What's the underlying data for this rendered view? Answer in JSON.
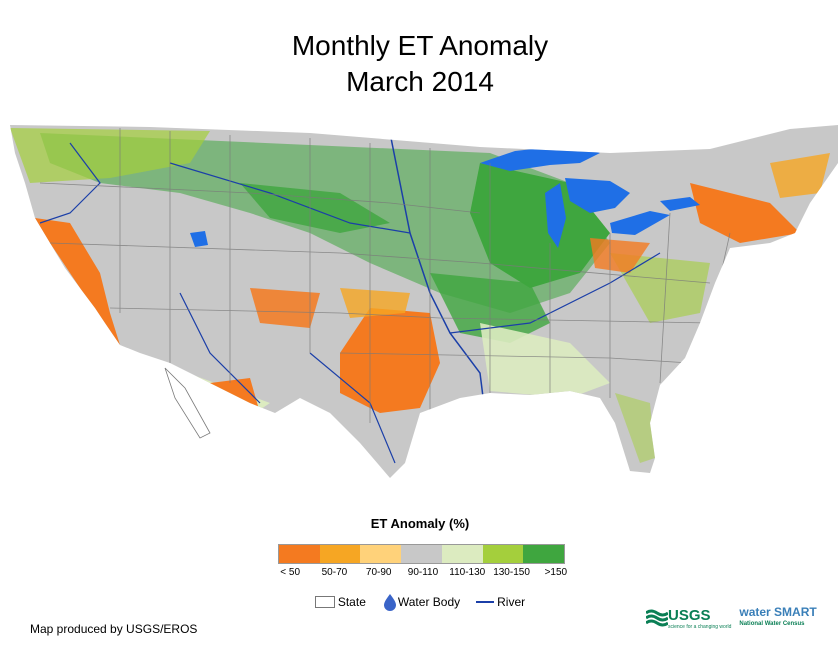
{
  "title_line1": "Monthly ET Anomaly",
  "title_line2": "March 2014",
  "legend": {
    "title": "ET Anomaly (%)",
    "classes": [
      {
        "label": "< 50",
        "color": "#f47a20"
      },
      {
        "label": "50-70",
        "color": "#f6a623"
      },
      {
        "label": "70-90",
        "color": "#ffd27a"
      },
      {
        "label": "90-110",
        "color": "#c8c8c8"
      },
      {
        "label": "110-130",
        "color": "#dcebc0"
      },
      {
        "label": "130-150",
        "color": "#a4cf3c"
      },
      {
        "label": ">150",
        "color": "#3fa63f"
      }
    ],
    "features": {
      "state": "State",
      "water_body": "Water Body",
      "river": "River"
    }
  },
  "colors": {
    "water": "#1f6fe6",
    "river": "#1b3fa8",
    "state_line": "#7a7a7a"
  },
  "footer": "Map produced by USGS/EROS",
  "logos": {
    "usgs": "USGS",
    "usgs_tagline": "science for a changing world",
    "watersmart": "water SMART",
    "watersmart_tagline": "National Water Census"
  }
}
